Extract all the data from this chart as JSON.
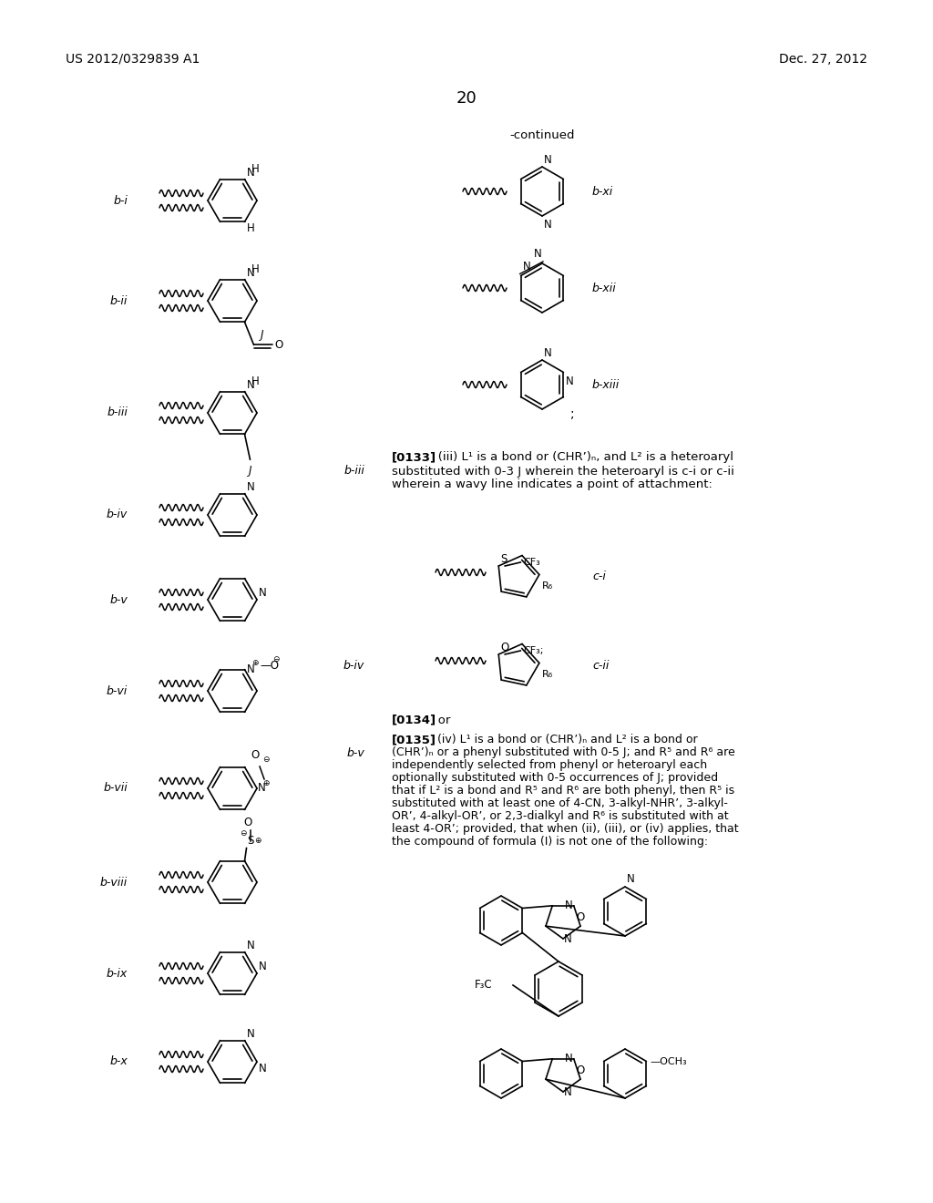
{
  "bg_color": "#ffffff",
  "patent_number": "US 2012/0329839 A1",
  "patent_date": "Dec. 27, 2012",
  "page_number": "20",
  "continued": "-continued",
  "para_0133": "[0133]",
  "para_0133_text1": "   (iii) L¹ is a bond or (CHR’)ₙ, and L² is a heteroaryl",
  "para_0133_text2": "substituted with 0-3 J wherein the heteroaryl is c-i or c-ii",
  "para_0133_text3": "wherein a wavy line indicates a point of attachment:",
  "para_0134": "[0134]",
  "para_0134_text": "   or",
  "para_0135": "[0135]",
  "para_0135_lines": [
    "   (iv) L¹ is a bond or (CHR’)ₙ and L² is a bond or",
    "(CHR’)ₙ or a phenyl substituted with 0-5 J; and R⁵ and R⁶ are",
    "independently selected from phenyl or heteroaryl each",
    "optionally substituted with 0-5 occurrences of J; provided",
    "that if L² is a bond and R⁵ and R⁶ are both phenyl, then R⁵ is",
    "substituted with at least one of 4-CN, 3-alkyl-NHR’, 3-alkyl-",
    "OR’, 4-alkyl-OR’, or 2,3-dialkyl and R⁶ is substituted with at",
    "least 4-OR’; provided, that when (ii), (iii), or (iv) applies, that",
    "the compound of formula (I) is not one of the following:"
  ]
}
